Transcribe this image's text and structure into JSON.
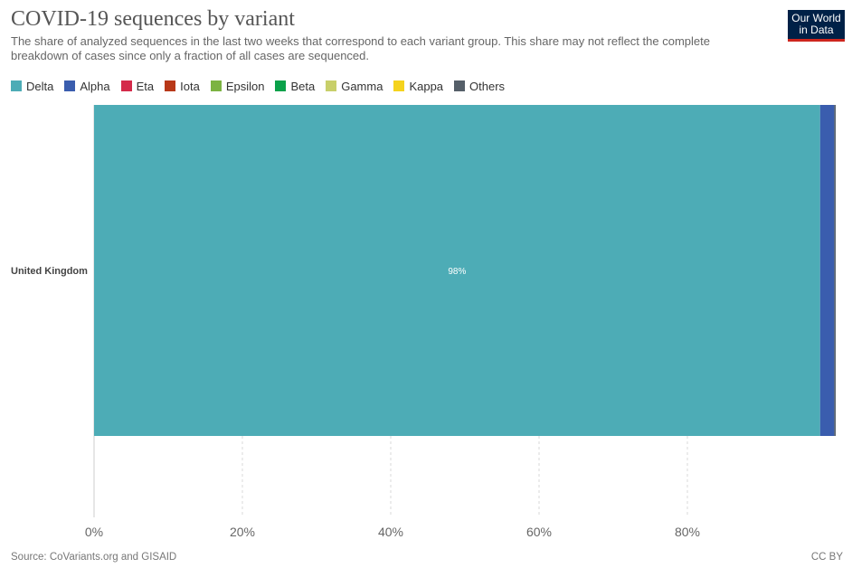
{
  "header": {
    "title": "COVID-19 sequences by variant",
    "subtitle": "The share of analyzed sequences in the last two weeks that correspond to each variant group. This share may not reflect the complete breakdown of cases since only a fraction of all cases are sequenced."
  },
  "logo": {
    "line1": "Our World",
    "line2": "in Data",
    "bg_color": "#002147",
    "accent_color": "#ce261e"
  },
  "legend": [
    {
      "label": "Delta",
      "color": "#4dacb6"
    },
    {
      "label": "Alpha",
      "color": "#3a5dae"
    },
    {
      "label": "Eta",
      "color": "#d42a4a"
    },
    {
      "label": "Iota",
      "color": "#b83818"
    },
    {
      "label": "Epsilon",
      "color": "#7cb342"
    },
    {
      "label": "Beta",
      "color": "#0aa14a"
    },
    {
      "label": "Gamma",
      "color": "#c8cf6a"
    },
    {
      "label": "Kappa",
      "color": "#f5d31d"
    },
    {
      "label": "Others",
      "color": "#555f69"
    }
  ],
  "chart_data": {
    "type": "bar",
    "orientation": "horizontal",
    "stacked": true,
    "categories": [
      "United Kingdom"
    ],
    "series": [
      {
        "name": "Delta",
        "values": [
          97.9
        ],
        "color": "#4dacb6",
        "label": "98%"
      },
      {
        "name": "Alpha",
        "values": [
          1.9
        ],
        "color": "#3a5dae"
      },
      {
        "name": "Others",
        "values": [
          0.2
        ],
        "color": "#555f69"
      }
    ],
    "xlim": [
      0,
      100
    ],
    "x_ticks": [
      "0%",
      "20%",
      "40%",
      "60%",
      "80%"
    ],
    "x_tick_values": [
      0,
      20,
      40,
      60,
      80
    ],
    "grid": true,
    "legend_position": "top-left"
  },
  "footer": {
    "source": "Source: CoVariants.org and GISAID",
    "license": "CC BY"
  }
}
